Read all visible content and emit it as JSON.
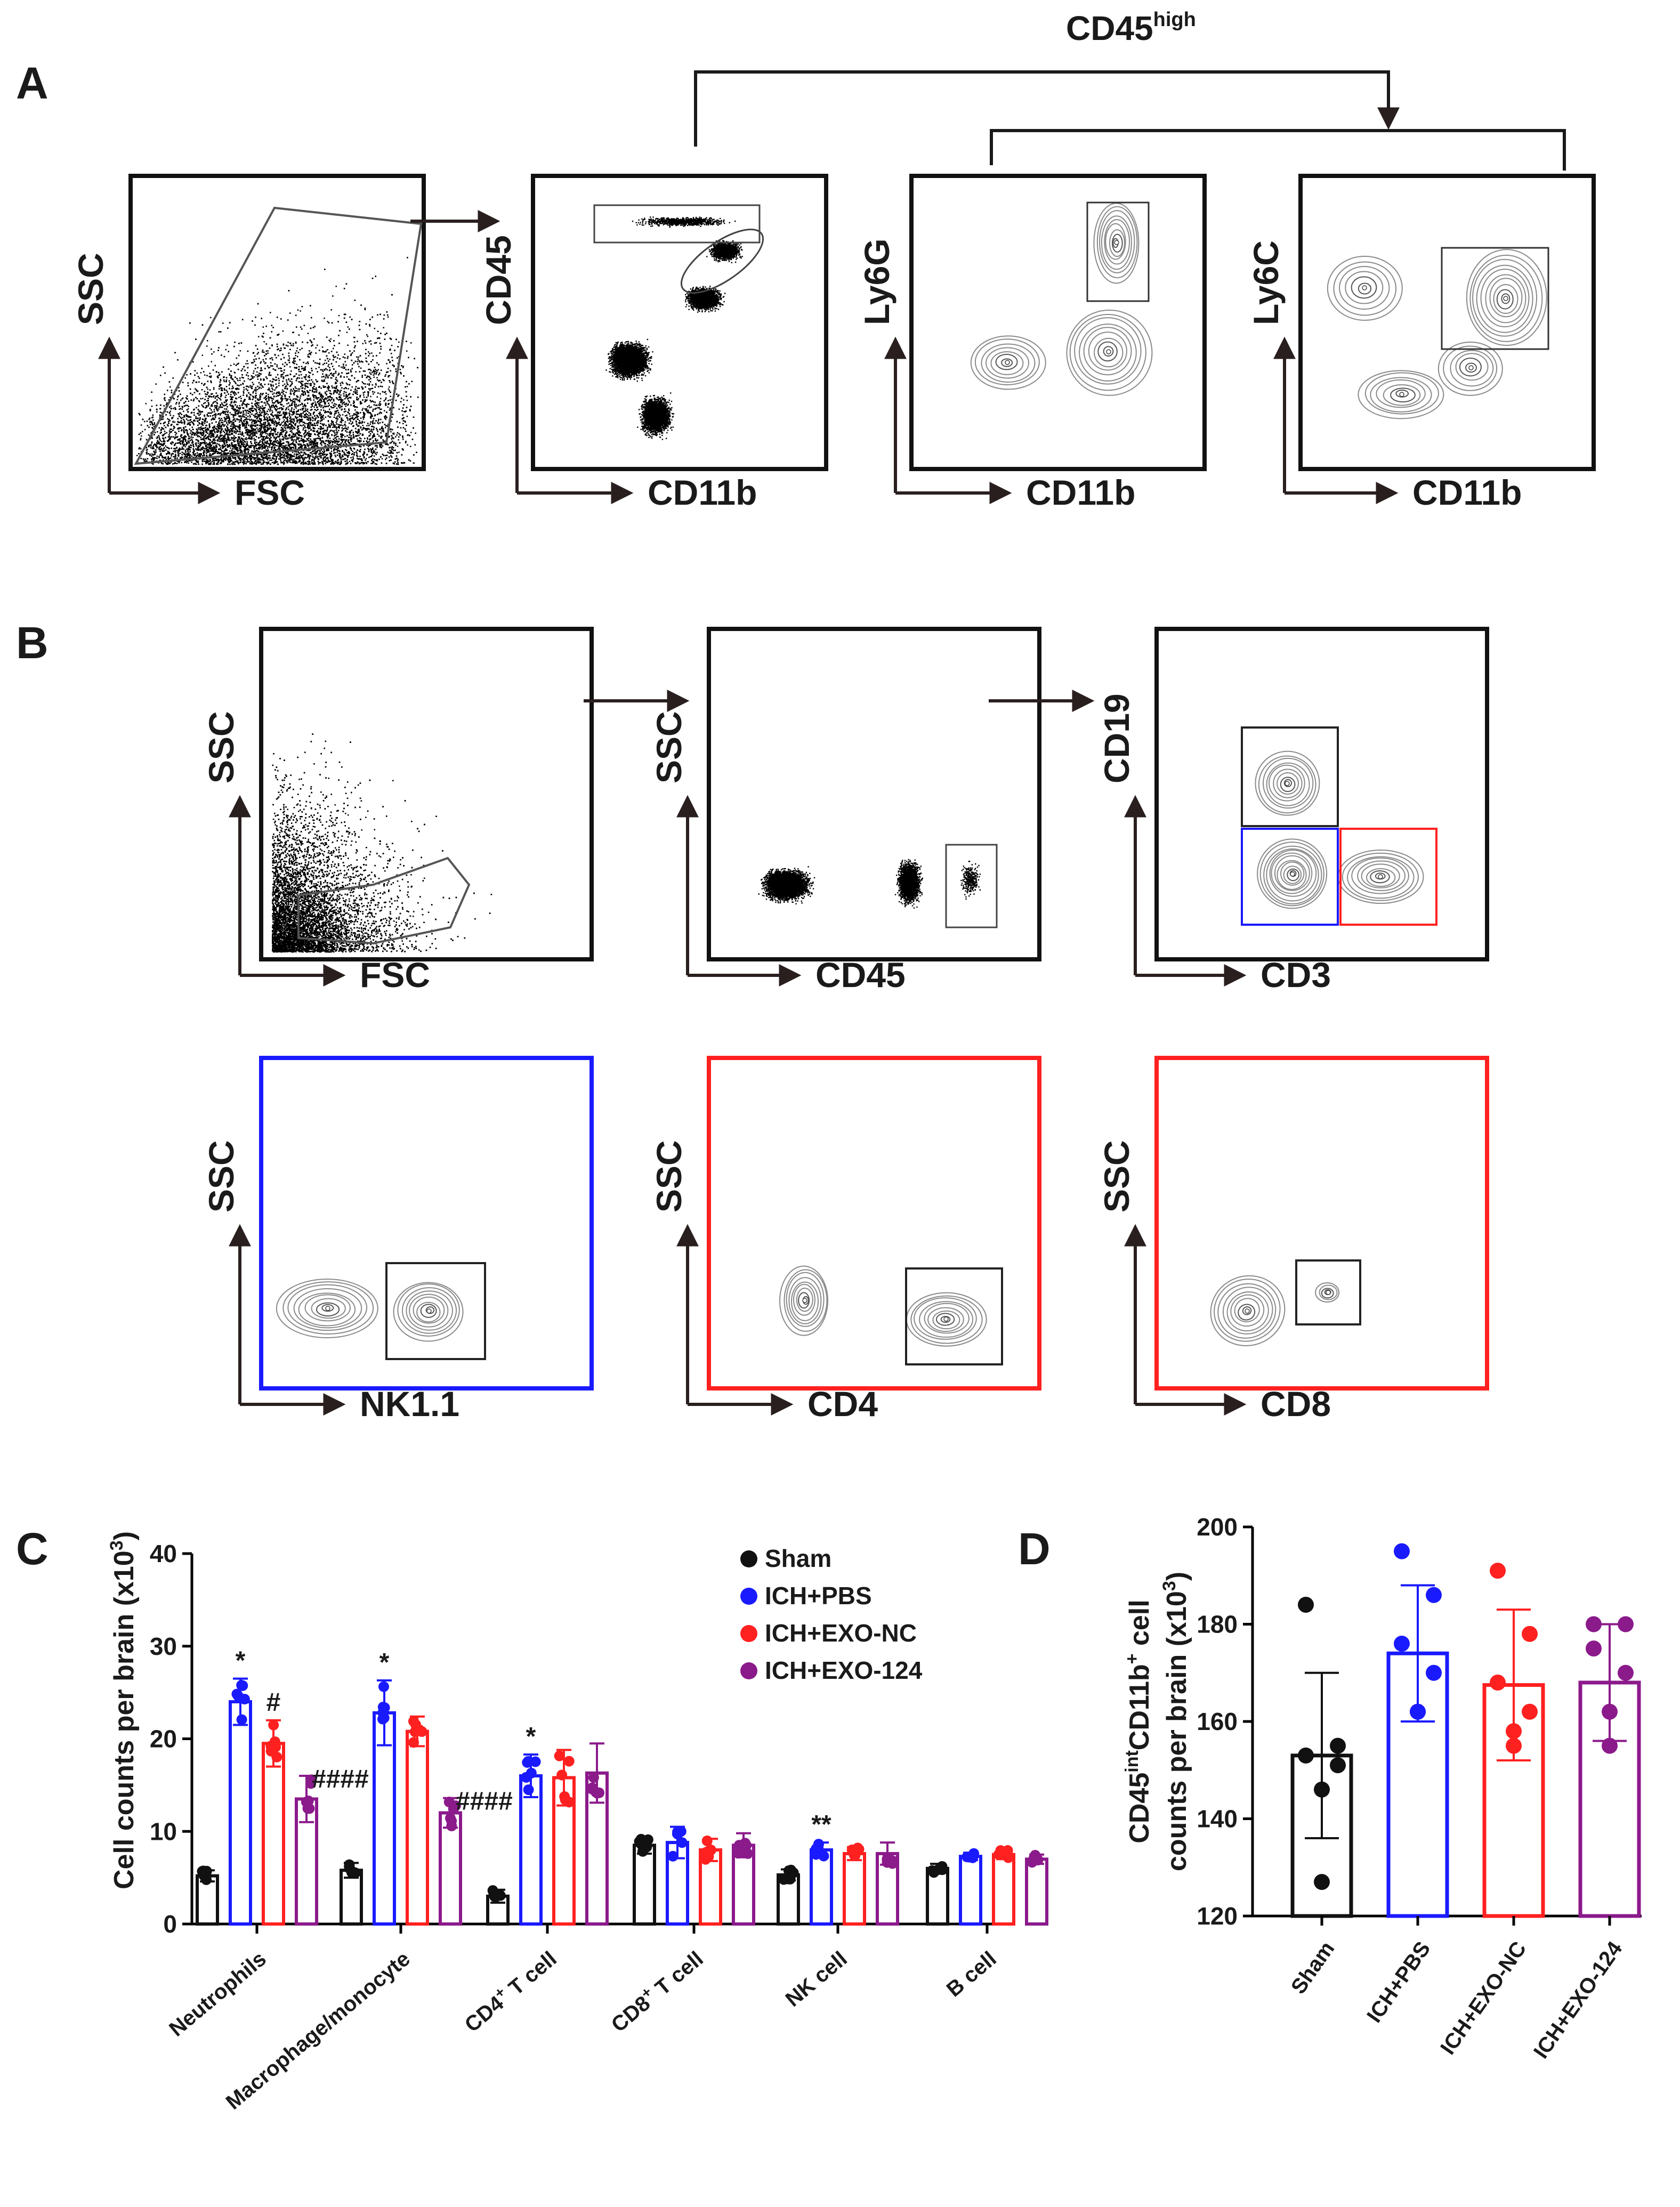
{
  "panels": {
    "A": "A",
    "B": "B",
    "C": "C",
    "D": "D"
  },
  "panelA": {
    "gate_label": "CD45",
    "gate_sup": "high",
    "plots": [
      {
        "y": "SSC",
        "x": "FSC"
      },
      {
        "y": "CD45",
        "x": "CD11b"
      },
      {
        "y": "Ly6G",
        "x": "CD11b"
      },
      {
        "y": "Ly6C",
        "x": "CD11b"
      }
    ]
  },
  "panelB": {
    "plots": [
      {
        "y": "SSC",
        "x": "FSC"
      },
      {
        "y": "SSC",
        "x": "CD45"
      },
      {
        "y": "CD19",
        "x": "CD3"
      },
      {
        "y": "SSC",
        "x": "NK1.1"
      },
      {
        "y": "SSC",
        "x": "CD4"
      },
      {
        "y": "SSC",
        "x": "CD8"
      }
    ]
  },
  "colors": {
    "sham": "#111111",
    "pbs": "#1a1aff",
    "nc": "#ff2020",
    "exo124": "#8b1a8b"
  },
  "chart_data": [
    {
      "type": "bar",
      "title": "",
      "ylabel": "Cell counts per brain (x10",
      "ylabel_sup": "3",
      "ylabel_end": ")",
      "ylim": [
        0,
        40
      ],
      "yticks": [
        "0",
        "10",
        "20",
        "30",
        "40"
      ],
      "categories": [
        "Neutrophils",
        "Macrophage/monocyte",
        "CD4",
        "CD8",
        "NK cell",
        "B cell"
      ],
      "category_sup": [
        "",
        "",
        "+",
        "+",
        "",
        ""
      ],
      "category_suffix": [
        "",
        "",
        " T cell",
        " T cell",
        "",
        ""
      ],
      "legend": [
        "Sham",
        "ICH+PBS",
        "ICH+EXO-NC",
        "ICH+EXO-124"
      ],
      "series": [
        {
          "name": "Sham",
          "values": [
            5.2,
            5.8,
            3.0,
            8.5,
            5.3,
            6.0
          ],
          "errors": [
            0.6,
            0.8,
            0.7,
            0.9,
            0.6,
            0.5
          ]
        },
        {
          "name": "ICH+PBS",
          "values": [
            24.0,
            22.8,
            16.0,
            8.8,
            8.0,
            7.3
          ],
          "errors": [
            2.5,
            3.5,
            2.3,
            1.7,
            0.8,
            0.4
          ]
        },
        {
          "name": "ICH+EXO-NC",
          "values": [
            19.5,
            20.8,
            15.8,
            8.0,
            7.6,
            7.5
          ],
          "errors": [
            2.5,
            1.6,
            3.0,
            1.2,
            0.7,
            0.5
          ]
        },
        {
          "name": "ICH+EXO-124",
          "values": [
            13.5,
            12.0,
            16.3,
            8.5,
            7.6,
            7.0
          ],
          "errors": [
            2.5,
            1.6,
            3.2,
            1.3,
            1.2,
            0.5
          ]
        }
      ],
      "annotations": [
        {
          "category": 0,
          "series": 1,
          "text": "*"
        },
        {
          "category": 0,
          "series": 2,
          "text": "#"
        },
        {
          "category": 0,
          "series": 3,
          "text": "####"
        },
        {
          "category": 1,
          "series": 1,
          "text": "*"
        },
        {
          "category": 1,
          "series": 3,
          "text": "####"
        },
        {
          "category": 2,
          "series": 1,
          "text": "*"
        },
        {
          "category": 4,
          "series": 1,
          "text": "**"
        }
      ]
    },
    {
      "type": "bar",
      "title": "",
      "ylabel_line1": "CD45",
      "ylabel_line1_sup1": "int",
      "ylabel_line1_mid": "CD11b",
      "ylabel_line1_sup2": "+",
      "ylabel_line1_end": " cell",
      "ylabel_line2": "counts per brain (x10",
      "ylabel_line2_sup": "3",
      "ylabel_line2_end": ")",
      "ylim": [
        120,
        200
      ],
      "yticks": [
        "120",
        "140",
        "160",
        "180",
        "200"
      ],
      "categories": [
        "Sham",
        "ICH+PBS",
        "ICH+EXO-NC",
        "ICH+EXO-124"
      ],
      "values": [
        153,
        174,
        167.5,
        168
      ],
      "errors": [
        17,
        14,
        15.5,
        12
      ],
      "points": [
        [
          184,
          155,
          153,
          151,
          146,
          127
        ],
        [
          195,
          186,
          176,
          170,
          162,
          162
        ],
        [
          191,
          178,
          168,
          162,
          158,
          155
        ],
        [
          180,
          180,
          175,
          170,
          162,
          155
        ]
      ]
    }
  ]
}
